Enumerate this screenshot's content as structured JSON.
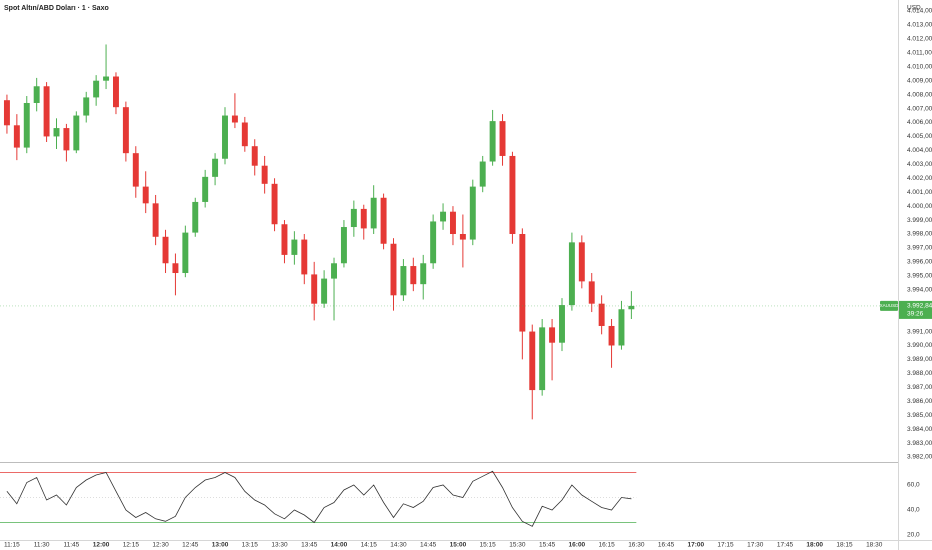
{
  "chart_data": {
    "type": "candlestick",
    "title": "Spot Altın/ABD Doları · 1 · Saxo",
    "currency": "USD",
    "symbol": "XAUUSD",
    "last_price": {
      "value": 3992.84,
      "label": "3.992,84"
    },
    "countdown": "39:26",
    "up_color": "#4caf50",
    "down_color": "#e53935",
    "x": [
      "11:10",
      "11:15",
      "11:20",
      "11:25",
      "11:30",
      "11:35",
      "11:40",
      "11:45",
      "11:50",
      "11:55",
      "12:00",
      "12:05",
      "12:10",
      "12:15",
      "12:20",
      "12:25",
      "12:30",
      "12:35",
      "12:40",
      "12:45",
      "12:50",
      "12:55",
      "13:00",
      "13:05",
      "13:10",
      "13:15",
      "13:20",
      "13:25",
      "13:30",
      "13:35",
      "13:40",
      "13:45",
      "13:50",
      "13:55",
      "14:00",
      "14:05",
      "14:10",
      "14:15",
      "14:20",
      "14:25",
      "14:30",
      "14:35",
      "14:40",
      "14:45",
      "14:50",
      "14:55",
      "15:00",
      "15:05",
      "15:10",
      "15:15",
      "15:20",
      "15:25",
      "15:30",
      "15:35",
      "15:40",
      "15:45",
      "15:50",
      "15:55",
      "16:00",
      "16:05",
      "16:10",
      "16:15",
      "16:20",
      "16:25"
    ],
    "open": [
      4007.6,
      4005.8,
      4004.2,
      4007.4,
      4008.6,
      4005.0,
      4005.6,
      4004.0,
      4006.5,
      4007.8,
      4009.0,
      4009.3,
      4007.1,
      4003.8,
      4001.4,
      4000.2,
      3997.8,
      3995.9,
      3995.2,
      3998.1,
      4000.3,
      4002.1,
      4003.4,
      4006.5,
      4006.0,
      4004.3,
      4002.9,
      4001.6,
      3998.7,
      3996.5,
      3997.6,
      3995.1,
      3993.0,
      3994.8,
      3995.9,
      3998.5,
      3999.8,
      3998.4,
      4000.6,
      3997.3,
      3993.6,
      3995.7,
      3994.4,
      3995.9,
      3998.9,
      3999.6,
      3998.0,
      3997.6,
      4001.4,
      4003.2,
      4006.1,
      4003.6,
      3998.0,
      3991.0,
      3986.8,
      3991.3,
      3990.2,
      3992.9,
      3997.4,
      3994.6,
      3993.0,
      3991.4,
      3990.0,
      3992.6
    ],
    "high": [
      4008.0,
      4006.6,
      4007.9,
      4009.2,
      4008.9,
      4006.3,
      4005.9,
      4006.8,
      4008.2,
      4009.4,
      4011.6,
      4009.6,
      4007.5,
      4004.3,
      4002.5,
      4000.8,
      3998.3,
      3996.6,
      3998.6,
      4000.6,
      4002.6,
      4003.8,
      4007.1,
      4008.1,
      4006.4,
      4004.8,
      4003.6,
      4002.0,
      3999.0,
      3998.2,
      3998.0,
      3996.0,
      3995.4,
      3996.3,
      3999.0,
      4000.4,
      4000.1,
      4001.5,
      4000.9,
      3997.7,
      3996.2,
      3996.3,
      3996.5,
      3999.4,
      4000.2,
      4000.0,
      3999.4,
      4001.9,
      4003.6,
      4006.9,
      4006.6,
      4003.9,
      3998.4,
      3991.5,
      3991.9,
      3991.9,
      3993.4,
      3998.1,
      3997.9,
      3995.2,
      3993.6,
      3991.9,
      3993.2,
      3993.9
    ],
    "low": [
      4005.2,
      4003.3,
      4003.8,
      4006.8,
      4004.6,
      4004.1,
      4003.2,
      4003.8,
      4006.0,
      4007.2,
      4008.4,
      4006.6,
      4003.2,
      4000.6,
      3999.5,
      3997.2,
      3995.2,
      3993.6,
      3994.9,
      3997.8,
      3999.9,
      4001.5,
      4003.0,
      4005.6,
      4003.9,
      4002.2,
      4000.9,
      3998.2,
      3995.9,
      3995.8,
      3994.4,
      3991.8,
      3992.7,
      3991.8,
      3995.6,
      3997.8,
      3997.6,
      3998.0,
      3996.9,
      3992.5,
      3993.2,
      3993.9,
      3993.3,
      3995.5,
      3998.3,
      3997.2,
      3995.6,
      3997.2,
      4001.0,
      4002.9,
      4002.9,
      3997.3,
      3989.0,
      3984.7,
      3986.4,
      3987.5,
      3989.6,
      3992.5,
      3994.1,
      3992.4,
      3990.8,
      3988.4,
      3989.7,
      3991.9
    ],
    "close": [
      4005.8,
      4004.2,
      4007.4,
      4008.6,
      4005.0,
      4005.6,
      4004.0,
      4006.5,
      4007.8,
      4009.0,
      4009.3,
      4007.1,
      4003.8,
      4001.4,
      4000.2,
      3997.8,
      3995.9,
      3995.2,
      3998.1,
      4000.3,
      4002.1,
      4003.4,
      4006.5,
      4006.0,
      4004.3,
      4002.9,
      4001.6,
      3998.7,
      3996.5,
      3997.6,
      3995.1,
      3993.0,
      3994.8,
      3995.9,
      3998.5,
      3999.8,
      3998.4,
      4000.6,
      3997.3,
      3993.6,
      3995.7,
      3994.4,
      3995.9,
      3998.9,
      3999.6,
      3998.0,
      3997.6,
      4001.4,
      4003.2,
      4006.1,
      4003.6,
      3998.0,
      3991.0,
      3986.8,
      3991.3,
      3990.2,
      3992.9,
      3997.4,
      3994.6,
      3993.0,
      3991.4,
      3990.0,
      3992.6,
      3992.84
    ],
    "xlim": [
      "11:09",
      "18:42"
    ],
    "xticks": [
      "11:15",
      "11:30",
      "11:45",
      "12:00",
      "12:15",
      "12:30",
      "12:45",
      "13:00",
      "13:15",
      "13:30",
      "13:45",
      "14:00",
      "14:15",
      "14:30",
      "14:45",
      "15:00",
      "15:15",
      "15:30",
      "15:45",
      "16:00",
      "16:15",
      "16:30",
      "16:45",
      "17:00",
      "17:15",
      "17:30",
      "17:45",
      "18:00",
      "18:15",
      "18:30"
    ],
    "ylim": [
      3981.64,
      4014.79
    ],
    "yticks": [
      {
        "value": 3982,
        "label": "3.982,00"
      },
      {
        "value": 3983,
        "label": "3.983,00"
      },
      {
        "value": 3984,
        "label": "3.984,00"
      },
      {
        "value": 3985,
        "label": "3.985,00"
      },
      {
        "value": 3986,
        "label": "3.986,00"
      },
      {
        "value": 3987,
        "label": "3.987,00"
      },
      {
        "value": 3988,
        "label": "3.988,00"
      },
      {
        "value": 3989,
        "label": "3.989,00"
      },
      {
        "value": 3990,
        "label": "3.990,00"
      },
      {
        "value": 3991,
        "label": "3.991,00"
      },
      {
        "value": 3993,
        "label": "3.993,00"
      },
      {
        "value": 3994,
        "label": "3.994,00"
      },
      {
        "value": 3995,
        "label": "3.995,00"
      },
      {
        "value": 3996,
        "label": "3.996,00"
      },
      {
        "value": 3997,
        "label": "3.997,00"
      },
      {
        "value": 3998,
        "label": "3.998,00"
      },
      {
        "value": 3999,
        "label": "3.999,00"
      },
      {
        "value": 4000,
        "label": "4.000,00"
      },
      {
        "value": 4001,
        "label": "4.001,00"
      },
      {
        "value": 4002,
        "label": "4.002,00"
      },
      {
        "value": 4003,
        "label": "4.003,00"
      },
      {
        "value": 4004,
        "label": "4.004,00"
      },
      {
        "value": 4005,
        "label": "4.005,00"
      },
      {
        "value": 4006,
        "label": "4.006,00"
      },
      {
        "value": 4007,
        "label": "4.007,00"
      },
      {
        "value": 4008,
        "label": "4.008,00"
      },
      {
        "value": 4009,
        "label": "4.009,00"
      },
      {
        "value": 4010,
        "label": "4.010,00"
      },
      {
        "value": 4011,
        "label": "4.011,00"
      },
      {
        "value": 4012,
        "label": "4.012,00"
      },
      {
        "value": 4013,
        "label": "4.013,00"
      },
      {
        "value": 4014,
        "label": "4.014,00"
      }
    ],
    "oscillator": {
      "values": [
        55,
        45,
        62,
        66,
        48,
        52,
        44,
        58,
        64,
        68,
        70,
        55,
        40,
        34,
        38,
        33,
        31,
        35,
        50,
        58,
        64,
        66,
        70,
        66,
        55,
        48,
        44,
        37,
        33,
        40,
        36,
        30,
        42,
        46,
        56,
        60,
        52,
        60,
        46,
        34,
        45,
        42,
        47,
        58,
        60,
        52,
        50,
        63,
        67,
        71,
        58,
        42,
        31,
        27,
        43,
        40,
        48,
        60,
        52,
        47,
        42,
        40,
        50,
        49
      ],
      "color": "#333333",
      "ylim": [
        16,
        78.4
      ],
      "yticks": [
        {
          "value": 60,
          "label": "60,0"
        },
        {
          "value": 40,
          "label": "40,0"
        },
        {
          "value": 20,
          "label": "20,0"
        }
      ],
      "upper_level": 70,
      "upper_color": "#e53935",
      "lower_level": 30,
      "lower_color": "#4caf50",
      "mid_level": 50
    }
  }
}
